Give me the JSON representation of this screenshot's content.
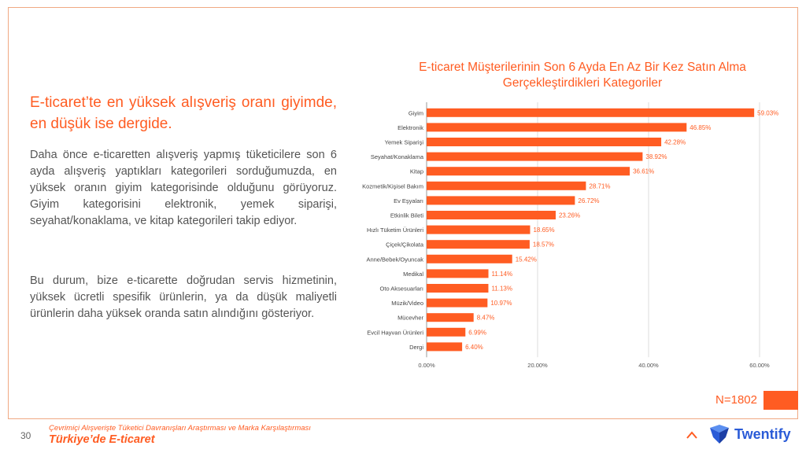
{
  "slide": {
    "headline": "E-ticaret’te en yüksek alışveriş oranı giyimde, en düşük ise dergide.",
    "paragraph1": "Daha önce e-ticaretten alışveriş yapmış tüketicilere son 6 ayda alışveriş yaptıkları kategorileri sorduğumuzda, en yüksek oranın giyim kategorisinde olduğunu görüyoruz. Giyim kategorisini elektronik, yemek siparişi, seyahat/konaklama, ve kitap kategorileri takip ediyor.",
    "paragraph2": "Bu durum, bize e-ticarette doğrudan servis hizmetinin, yüksek ücretli spesifik ürünlerin, ya da düşük maliyetli ürünlerin daha yüksek oranda satın alındığını gösteriyor.",
    "sample_size": "N=1802",
    "page_number": "30",
    "footer_subtitle": "Çevrimiçi Alışverişte Tüketici Davranışları Araştırması ve Marka Karşılaştırması",
    "footer_title": "Türkiye’de E-ticaret",
    "brand": "Twentify"
  },
  "colors": {
    "accent": "#ff5c22",
    "brand_blue": "#2a5bd7"
  },
  "icons": {
    "chevron": "chevron-up-icon",
    "logo": "twentify-logo-icon"
  },
  "chart_data": {
    "type": "bar",
    "orientation": "horizontal",
    "title_line1": "E-ticaret Müşterilerinin Son 6 Ayda En Az Bir Kez Satın Alma",
    "title_line2": "Gerçekleştirdikleri Kategoriler",
    "categories": [
      "Giyim",
      "Elektronik",
      "Yemek Siparişi",
      "Seyahat/Konaklama",
      "Kitap",
      "Kozmetik/Kişisel Bakım",
      "Ev Eşyaları",
      "Etkinlik Bileti",
      "Hızlı Tüketim Ürünleri",
      "Çiçek/Çikolata",
      "Anne/Bebek/Oyuncak",
      "Medikal",
      "Oto Aksesuarları",
      "Müzik/Video",
      "Mücevher",
      "Evcil Hayvan Ürünleri",
      "Dergi"
    ],
    "values": [
      59.03,
      46.85,
      42.28,
      38.92,
      36.61,
      28.71,
      26.72,
      23.26,
      18.65,
      18.57,
      15.42,
      11.14,
      11.13,
      10.97,
      8.47,
      6.99,
      6.4
    ],
    "value_labels": [
      "59.03%",
      "46.85%",
      "42.28%",
      "38.92%",
      "36.61%",
      "28.71%",
      "26.72%",
      "23.26%",
      "18.65%",
      "18.57%",
      "15.42%",
      "11.14%",
      "11.13%",
      "10.97%",
      "8.47%",
      "6.99%",
      "6.40%"
    ],
    "xlim": [
      0,
      60
    ],
    "xticks": [
      0,
      20,
      40,
      60
    ],
    "xtick_labels": [
      "0.00%",
      "20.00%",
      "40.00%",
      "60.00%"
    ],
    "grid": "vertical",
    "color": "#ff5c22"
  }
}
